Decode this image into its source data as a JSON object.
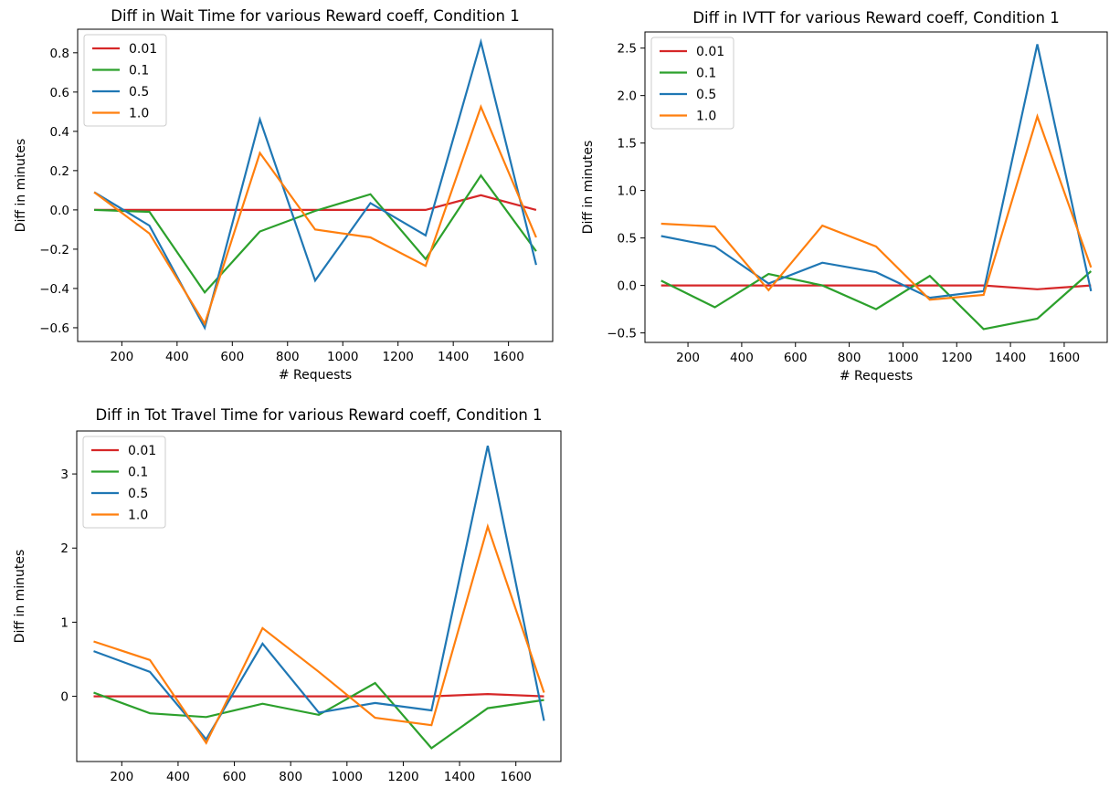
{
  "chart_data": [
    {
      "type": "line",
      "title": "Diff in Wait Time for various Reward coeff, Condition 1",
      "xlabel": "# Requests",
      "ylabel": "Diff in minutes",
      "xlim": [
        40,
        1760
      ],
      "ylim": [
        -0.67,
        0.92
      ],
      "xticks": [
        200,
        400,
        600,
        800,
        1000,
        1200,
        1400,
        1600
      ],
      "yticks": [
        -0.6,
        -0.4,
        -0.2,
        0.0,
        0.2,
        0.4,
        0.6,
        0.8
      ],
      "ytick_labels": [
        "−0.6",
        "−0.4",
        "−0.2",
        "0.0",
        "0.2",
        "0.4",
        "0.6",
        "0.8"
      ],
      "legend_position": "top-left",
      "grid": false,
      "x": [
        100,
        300,
        500,
        700,
        900,
        1100,
        1300,
        1500,
        1700
      ],
      "series": [
        {
          "name": "0.01",
          "color": "#d62728",
          "values": [
            0.0,
            0.0,
            0.0,
            0.0,
            0.0,
            0.0,
            0.0,
            0.075,
            0.0
          ]
        },
        {
          "name": "0.1",
          "color": "#2ca02c",
          "values": [
            0.0,
            -0.01,
            -0.42,
            -0.11,
            -0.005,
            0.08,
            -0.25,
            0.175,
            -0.21
          ]
        },
        {
          "name": "0.5",
          "color": "#1f77b4",
          "values": [
            0.09,
            -0.08,
            -0.6,
            0.46,
            -0.36,
            0.035,
            -0.13,
            0.855,
            -0.28
          ]
        },
        {
          "name": "1.0",
          "color": "#ff7f0e",
          "values": [
            0.09,
            -0.12,
            -0.58,
            0.29,
            -0.1,
            -0.14,
            -0.285,
            0.525,
            -0.14
          ]
        }
      ]
    },
    {
      "type": "line",
      "title": "Diff in IVTT for various Reward coeff, Condition 1",
      "xlabel": "# Requests",
      "ylabel": "Diff in minutes",
      "xlim": [
        40,
        1760
      ],
      "ylim": [
        -0.6,
        2.67
      ],
      "xticks": [
        200,
        400,
        600,
        800,
        1000,
        1200,
        1400,
        1600
      ],
      "yticks": [
        -0.5,
        0.0,
        0.5,
        1.0,
        1.5,
        2.0,
        2.5
      ],
      "ytick_labels": [
        "−0.5",
        "0.0",
        "0.5",
        "1.0",
        "1.5",
        "2.0",
        "2.5"
      ],
      "legend_position": "top-left",
      "grid": false,
      "x": [
        100,
        300,
        500,
        700,
        900,
        1100,
        1300,
        1500,
        1700
      ],
      "series": [
        {
          "name": "0.01",
          "color": "#d62728",
          "values": [
            0.0,
            0.0,
            0.0,
            0.0,
            0.0,
            0.0,
            0.0,
            -0.04,
            0.0
          ]
        },
        {
          "name": "0.1",
          "color": "#2ca02c",
          "values": [
            0.05,
            -0.23,
            0.12,
            0.0,
            -0.25,
            0.1,
            -0.46,
            -0.35,
            0.15
          ]
        },
        {
          "name": "0.5",
          "color": "#1f77b4",
          "values": [
            0.52,
            0.41,
            0.02,
            0.24,
            0.14,
            -0.13,
            -0.06,
            2.54,
            -0.06
          ]
        },
        {
          "name": "1.0",
          "color": "#ff7f0e",
          "values": [
            0.65,
            0.62,
            -0.05,
            0.63,
            0.41,
            -0.15,
            -0.1,
            1.78,
            0.19
          ]
        }
      ]
    },
    {
      "type": "line",
      "title": "Diff in Tot Travel Time for various Reward coeff, Condition 1",
      "xlabel": "# Requests",
      "ylabel": "Diff in minutes",
      "xlim": [
        40,
        1760
      ],
      "ylim": [
        -0.88,
        3.58
      ],
      "xticks": [
        200,
        400,
        600,
        800,
        1000,
        1200,
        1400,
        1600
      ],
      "yticks": [
        0,
        1,
        2,
        3
      ],
      "ytick_labels": [
        "0",
        "1",
        "2",
        "3"
      ],
      "legend_position": "top-left",
      "grid": false,
      "x": [
        100,
        300,
        500,
        700,
        900,
        1100,
        1300,
        1500,
        1700
      ],
      "series": [
        {
          "name": "0.01",
          "color": "#d62728",
          "values": [
            0.0,
            0.0,
            0.0,
            0.0,
            0.0,
            0.0,
            0.0,
            0.03,
            0.0
          ]
        },
        {
          "name": "0.1",
          "color": "#2ca02c",
          "values": [
            0.05,
            -0.23,
            -0.28,
            -0.1,
            -0.25,
            0.18,
            -0.7,
            -0.16,
            -0.05
          ]
        },
        {
          "name": "0.5",
          "color": "#1f77b4",
          "values": [
            0.61,
            0.33,
            -0.58,
            0.71,
            -0.22,
            -0.09,
            -0.19,
            3.38,
            -0.33
          ]
        },
        {
          "name": "1.0",
          "color": "#ff7f0e",
          "values": [
            0.74,
            0.49,
            -0.63,
            0.92,
            0.33,
            -0.29,
            -0.39,
            2.29,
            0.05
          ]
        }
      ]
    }
  ]
}
